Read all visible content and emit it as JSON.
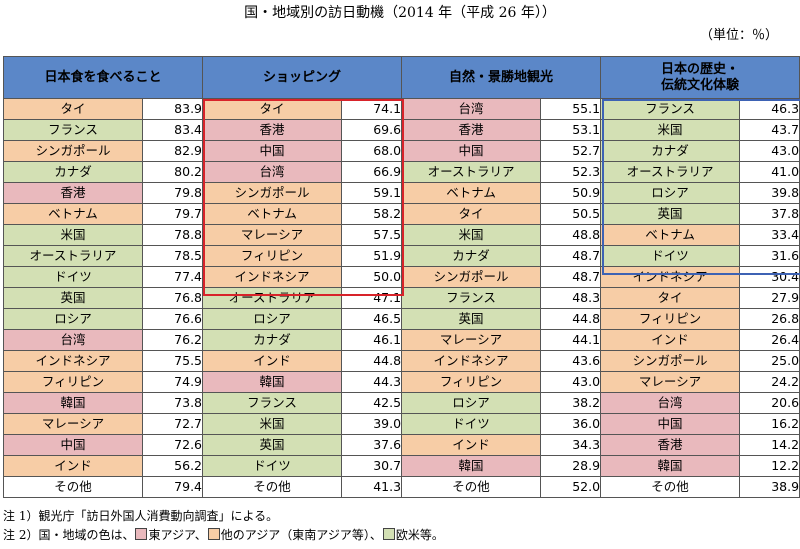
{
  "title": "国・地域別の訪日動機（2014 年（平成 26 年））",
  "unit": "（単位：％）",
  "headers": [
    "日本食を食べること",
    "ショッピング",
    "自然・景勝地観光",
    "日本の歴史・\n伝統文化体験"
  ],
  "colors": {
    "east_asia": "#e9b9bd",
    "other_asia": "#f7cda6",
    "west": "#d3e0b4",
    "header": "#5b87c8",
    "highlight_red": "#d8232a",
    "highlight_blue": "#3d62b4"
  },
  "columns": [
    [
      {
        "name": "タイ",
        "value": "83.9",
        "cat": "seasia"
      },
      {
        "name": "フランス",
        "value": "83.4",
        "cat": "west"
      },
      {
        "name": "シンガポール",
        "value": "82.9",
        "cat": "seasia"
      },
      {
        "name": "カナダ",
        "value": "80.2",
        "cat": "west"
      },
      {
        "name": "香港",
        "value": "79.8",
        "cat": "east"
      },
      {
        "name": "ベトナム",
        "value": "79.7",
        "cat": "seasia"
      },
      {
        "name": "米国",
        "value": "78.8",
        "cat": "west"
      },
      {
        "name": "オーストラリア",
        "value": "78.5",
        "cat": "west"
      },
      {
        "name": "ドイツ",
        "value": "77.4",
        "cat": "west"
      },
      {
        "name": "英国",
        "value": "76.8",
        "cat": "west"
      },
      {
        "name": "ロシア",
        "value": "76.6",
        "cat": "west"
      },
      {
        "name": "台湾",
        "value": "76.2",
        "cat": "east"
      },
      {
        "name": "インドネシア",
        "value": "75.5",
        "cat": "seasia"
      },
      {
        "name": "フィリピン",
        "value": "74.9",
        "cat": "seasia"
      },
      {
        "name": "韓国",
        "value": "73.8",
        "cat": "east"
      },
      {
        "name": "マレーシア",
        "value": "72.7",
        "cat": "seasia"
      },
      {
        "name": "中国",
        "value": "72.6",
        "cat": "east"
      },
      {
        "name": "インド",
        "value": "56.2",
        "cat": "seasia"
      },
      {
        "name": "その他",
        "value": "79.4",
        "cat": "plain"
      }
    ],
    [
      {
        "name": "タイ",
        "value": "74.1",
        "cat": "seasia"
      },
      {
        "name": "香港",
        "value": "69.6",
        "cat": "east"
      },
      {
        "name": "中国",
        "value": "68.0",
        "cat": "east"
      },
      {
        "name": "台湾",
        "value": "66.9",
        "cat": "east"
      },
      {
        "name": "シンガポール",
        "value": "59.1",
        "cat": "seasia"
      },
      {
        "name": "ベトナム",
        "value": "58.2",
        "cat": "seasia"
      },
      {
        "name": "マレーシア",
        "value": "57.5",
        "cat": "seasia"
      },
      {
        "name": "フィリピン",
        "value": "51.9",
        "cat": "seasia"
      },
      {
        "name": "インドネシア",
        "value": "50.0",
        "cat": "seasia"
      },
      {
        "name": "オーストラリア",
        "value": "47.1",
        "cat": "west"
      },
      {
        "name": "ロシア",
        "value": "46.5",
        "cat": "west"
      },
      {
        "name": "カナダ",
        "value": "46.1",
        "cat": "west"
      },
      {
        "name": "インド",
        "value": "44.8",
        "cat": "seasia"
      },
      {
        "name": "韓国",
        "value": "44.3",
        "cat": "east"
      },
      {
        "name": "フランス",
        "value": "42.5",
        "cat": "west"
      },
      {
        "name": "米国",
        "value": "39.0",
        "cat": "west"
      },
      {
        "name": "英国",
        "value": "37.6",
        "cat": "west"
      },
      {
        "name": "ドイツ",
        "value": "30.7",
        "cat": "west"
      },
      {
        "name": "その他",
        "value": "41.3",
        "cat": "plain"
      }
    ],
    [
      {
        "name": "台湾",
        "value": "55.1",
        "cat": "east"
      },
      {
        "name": "香港",
        "value": "53.1",
        "cat": "east"
      },
      {
        "name": "中国",
        "value": "52.7",
        "cat": "east"
      },
      {
        "name": "オーストラリア",
        "value": "52.3",
        "cat": "west"
      },
      {
        "name": "ベトナム",
        "value": "50.9",
        "cat": "seasia"
      },
      {
        "name": "タイ",
        "value": "50.5",
        "cat": "seasia"
      },
      {
        "name": "米国",
        "value": "48.8",
        "cat": "west"
      },
      {
        "name": "カナダ",
        "value": "48.7",
        "cat": "west"
      },
      {
        "name": "シンガポール",
        "value": "48.7",
        "cat": "seasia"
      },
      {
        "name": "フランス",
        "value": "48.3",
        "cat": "west"
      },
      {
        "name": "英国",
        "value": "44.8",
        "cat": "west"
      },
      {
        "name": "マレーシア",
        "value": "44.1",
        "cat": "seasia"
      },
      {
        "name": "インドネシア",
        "value": "43.6",
        "cat": "seasia"
      },
      {
        "name": "フィリピン",
        "value": "43.0",
        "cat": "seasia"
      },
      {
        "name": "ロシア",
        "value": "38.2",
        "cat": "west"
      },
      {
        "name": "ドイツ",
        "value": "36.0",
        "cat": "west"
      },
      {
        "name": "インド",
        "value": "34.3",
        "cat": "seasia"
      },
      {
        "name": "韓国",
        "value": "28.9",
        "cat": "east"
      },
      {
        "name": "その他",
        "value": "52.0",
        "cat": "plain"
      }
    ],
    [
      {
        "name": "フランス",
        "value": "46.3",
        "cat": "west"
      },
      {
        "name": "米国",
        "value": "43.7",
        "cat": "west"
      },
      {
        "name": "カナダ",
        "value": "43.0",
        "cat": "west"
      },
      {
        "name": "オーストラリア",
        "value": "41.0",
        "cat": "west"
      },
      {
        "name": "ロシア",
        "value": "39.8",
        "cat": "west"
      },
      {
        "name": "英国",
        "value": "37.8",
        "cat": "west"
      },
      {
        "name": "ベトナム",
        "value": "33.4",
        "cat": "seasia"
      },
      {
        "name": "ドイツ",
        "value": "31.6",
        "cat": "west"
      },
      {
        "name": "インドネシア",
        "value": "30.4",
        "cat": "seasia"
      },
      {
        "name": "タイ",
        "value": "27.9",
        "cat": "seasia"
      },
      {
        "name": "フィリピン",
        "value": "26.8",
        "cat": "seasia"
      },
      {
        "name": "インド",
        "value": "26.4",
        "cat": "seasia"
      },
      {
        "name": "シンガポール",
        "value": "25.0",
        "cat": "seasia"
      },
      {
        "name": "マレーシア",
        "value": "24.2",
        "cat": "seasia"
      },
      {
        "name": "台湾",
        "value": "20.6",
        "cat": "east"
      },
      {
        "name": "中国",
        "value": "16.2",
        "cat": "east"
      },
      {
        "name": "香港",
        "value": "14.2",
        "cat": "east"
      },
      {
        "name": "韓国",
        "value": "12.2",
        "cat": "east"
      },
      {
        "name": "その他",
        "value": "38.9",
        "cat": "plain"
      }
    ]
  ],
  "notes": {
    "note1": "注 1）観光庁「訪日外国人消費動向調査」による。",
    "note2_prefix": "注 2）国・地域の色は、",
    "note2_east": "東アジア、",
    "note2_other": "他のアジア（東南アジア等）、",
    "note2_west": "欧米等。"
  }
}
